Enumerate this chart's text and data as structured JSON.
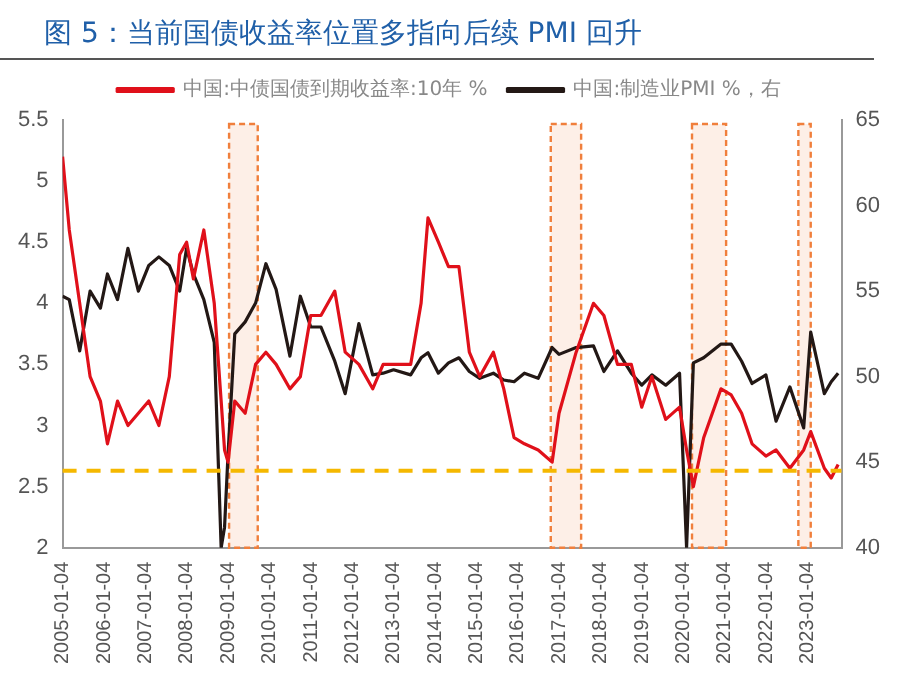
{
  "chart_data": {
    "type": "line",
    "title": "图 5：当前国债收益率位置多指向后续 PMI 回升",
    "x": [
      "2005-01",
      "2005-03",
      "2005-06",
      "2005-09",
      "2005-12",
      "2006-02",
      "2006-05",
      "2006-08",
      "2006-11",
      "2007-02",
      "2007-05",
      "2007-08",
      "2007-11",
      "2008-01",
      "2008-03",
      "2008-06",
      "2008-09",
      "2008-11",
      "2008-12",
      "2009-01",
      "2009-03",
      "2009-06",
      "2009-09",
      "2009-12",
      "2010-03",
      "2010-07",
      "2010-10",
      "2011-01",
      "2011-04",
      "2011-08",
      "2011-11",
      "2012-03",
      "2012-07",
      "2012-10",
      "2013-01",
      "2013-06",
      "2013-09",
      "2013-11",
      "2014-02",
      "2014-05",
      "2014-08",
      "2014-11",
      "2015-02",
      "2015-06",
      "2015-09",
      "2015-12",
      "2016-03",
      "2016-07",
      "2016-11",
      "2017-01",
      "2017-06",
      "2017-11",
      "2018-02",
      "2018-06",
      "2018-10",
      "2019-01",
      "2019-04",
      "2019-08",
      "2019-12",
      "2020-02",
      "2020-04",
      "2020-07",
      "2020-12",
      "2021-03",
      "2021-06",
      "2021-09",
      "2022-01",
      "2022-04",
      "2022-08",
      "2022-12",
      "2023-02",
      "2023-06",
      "2023-08",
      "2023-10"
    ],
    "series": [
      {
        "name": "中国:中债国债到期收益率:10年 %",
        "color": "#e0101a",
        "axis": "y",
        "values": [
          5.2,
          4.6,
          4.0,
          3.4,
          3.2,
          2.85,
          3.2,
          3.0,
          3.1,
          3.2,
          3.0,
          3.4,
          4.4,
          4.5,
          4.2,
          4.6,
          4.0,
          3.2,
          2.8,
          2.7,
          3.2,
          3.1,
          3.5,
          3.6,
          3.5,
          3.3,
          3.4,
          3.9,
          3.9,
          4.1,
          3.6,
          3.5,
          3.3,
          3.5,
          3.5,
          3.5,
          4.0,
          4.7,
          4.5,
          4.3,
          4.3,
          3.6,
          3.4,
          3.6,
          3.3,
          2.9,
          2.85,
          2.8,
          2.7,
          3.1,
          3.6,
          4.0,
          3.9,
          3.5,
          3.5,
          3.15,
          3.4,
          3.05,
          3.15,
          2.8,
          2.5,
          2.9,
          3.3,
          3.25,
          3.1,
          2.85,
          2.75,
          2.8,
          2.65,
          2.8,
          2.95,
          2.65,
          2.57,
          2.68
        ]
      },
      {
        "name": "中国:制造业PMI %，右",
        "color": "#231815",
        "axis": "y2",
        "values": [
          54.7,
          54.5,
          51.5,
          55.0,
          54.0,
          56.0,
          54.5,
          57.5,
          55.0,
          56.5,
          57.0,
          56.5,
          55.0,
          57.5,
          56.0,
          54.5,
          52.0,
          40,
          41.2,
          45.5,
          52.5,
          53.2,
          54.3,
          56.6,
          55.1,
          51.2,
          54.7,
          52.9,
          52.9,
          50.9,
          49.0,
          53.1,
          50.1,
          50.2,
          50.4,
          50.1,
          51.1,
          51.4,
          50.2,
          50.8,
          51.1,
          50.3,
          49.9,
          50.2,
          49.8,
          49.7,
          50.2,
          49.9,
          51.7,
          51.3,
          51.7,
          51.8,
          50.3,
          51.5,
          50.2,
          49.5,
          50.1,
          49.5,
          50.2,
          40,
          50.8,
          51.1,
          51.9,
          51.9,
          50.9,
          49.6,
          50.1,
          47.4,
          49.4,
          47.0,
          52.6,
          49.0,
          49.7,
          50.2
        ]
      }
    ],
    "xlim": [
      "2005-01-01",
      "2023-10-31"
    ],
    "xticks": [
      "2005-01-04",
      "2006-01-04",
      "2007-01-04",
      "2008-01-04",
      "2009-01-04",
      "2010-01-04",
      "2011-01-04",
      "2012-01-04",
      "2013-01-04",
      "2014-01-04",
      "2015-01-04",
      "2016-01-04",
      "2017-01-04",
      "2018-01-04",
      "2019-01-04",
      "2020-01-04",
      "2021-01-04",
      "2022-01-04",
      "2023-01-04"
    ],
    "ylim": [
      2,
      5.5
    ],
    "yticks": [
      2,
      2.5,
      3,
      3.5,
      4,
      4.5,
      5,
      5.5
    ],
    "y2lim": [
      40,
      65
    ],
    "y2ticks": [
      40,
      45,
      50,
      55,
      60,
      65
    ],
    "ref_lines": [
      {
        "axis": "y",
        "value": 2.63,
        "color": "#f5b800",
        "line_style": "dashed"
      }
    ],
    "bands": [
      {
        "axis": "x",
        "from": "2009-01-10",
        "to": "2009-09-20",
        "color": "#f07f3c"
      },
      {
        "axis": "x",
        "from": "2016-10-20",
        "to": "2017-07-15",
        "color": "#f07f3c"
      },
      {
        "axis": "x",
        "from": "2020-03-20",
        "to": "2021-01-15",
        "color": "#f07f3c"
      },
      {
        "axis": "x",
        "from": "2022-10-15",
        "to": "2023-02-01",
        "color": "#f07f3c"
      }
    ],
    "legend": "top",
    "grid": false,
    "marker": "none",
    "line_style": "solid"
  }
}
